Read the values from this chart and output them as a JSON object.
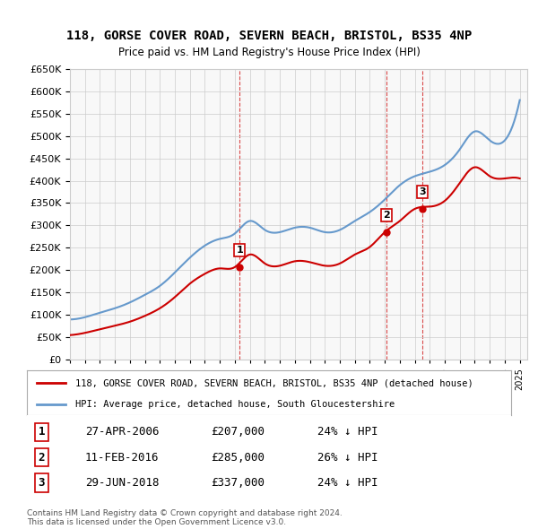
{
  "title_line1": "118, GORSE COVER ROAD, SEVERN BEACH, BRISTOL, BS35 4NP",
  "title_line2": "Price paid vs. HM Land Registry's House Price Index (HPI)",
  "ylabel_ticks": [
    "£0",
    "£50K",
    "£100K",
    "£150K",
    "£200K",
    "£250K",
    "£300K",
    "£350K",
    "£400K",
    "£450K",
    "£500K",
    "£550K",
    "£600K",
    "£650K"
  ],
  "ytick_values": [
    0,
    50000,
    100000,
    150000,
    200000,
    250000,
    300000,
    350000,
    400000,
    450000,
    500000,
    550000,
    600000,
    650000
  ],
  "hpi_color": "#6699CC",
  "price_color": "#CC0000",
  "background_color": "#F8F8F8",
  "legend_box_color": "#FFFFFF",
  "transactions": [
    {
      "date": 2006.32,
      "price": 207000,
      "label": "1"
    },
    {
      "date": 2016.12,
      "price": 285000,
      "label": "2"
    },
    {
      "date": 2018.5,
      "price": 337000,
      "label": "3"
    }
  ],
  "transaction_table": [
    {
      "num": "1",
      "date": "27-APR-2006",
      "price": "£207,000",
      "pct": "24% ↓ HPI"
    },
    {
      "num": "2",
      "date": "11-FEB-2016",
      "price": "£285,000",
      "pct": "26% ↓ HPI"
    },
    {
      "num": "3",
      "date": "29-JUN-2018",
      "price": "£337,000",
      "pct": "24% ↓ HPI"
    }
  ],
  "footer": "Contains HM Land Registry data © Crown copyright and database right 2024.\nThis data is licensed under the Open Government Licence v3.0.",
  "legend_line1": "118, GORSE COVER ROAD, SEVERN BEACH, BRISTOL, BS35 4NP (detached house)",
  "legend_line2": "HPI: Average price, detached house, South Gloucestershire"
}
